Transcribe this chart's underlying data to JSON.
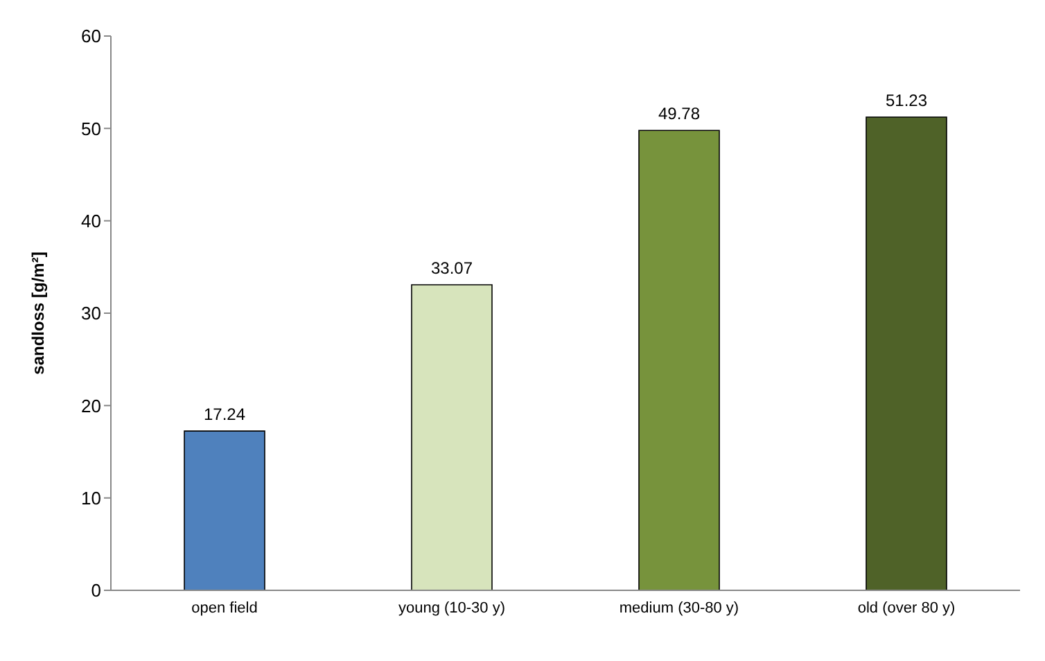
{
  "chart_data": {
    "type": "bar",
    "ylabel": "sandloss [g/m²]",
    "categories": [
      "open field",
      "young (10-30 y)",
      "medium (30-80 y)",
      "old (over 80 y)"
    ],
    "values": [
      17.24,
      33.07,
      49.78,
      51.23
    ],
    "colors": [
      "#4f81bd",
      "#d7e4bc",
      "#77933c",
      "#4f6228"
    ],
    "ylim": [
      0,
      60
    ],
    "yticks": [
      0,
      10,
      20,
      30,
      40,
      50,
      60
    ],
    "data_labels": true,
    "grid": false,
    "legend": false
  }
}
